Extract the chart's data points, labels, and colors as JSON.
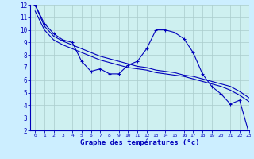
{
  "xlabel": "Graphe des températures (°c)",
  "xlim": [
    -0.5,
    23
  ],
  "ylim": [
    2,
    12
  ],
  "xticks": [
    0,
    1,
    2,
    3,
    4,
    5,
    6,
    7,
    8,
    9,
    10,
    11,
    12,
    13,
    14,
    15,
    16,
    17,
    18,
    19,
    20,
    21,
    22,
    23
  ],
  "yticks": [
    2,
    3,
    4,
    5,
    6,
    7,
    8,
    9,
    10,
    11,
    12
  ],
  "background_color": "#cceeff",
  "plot_bg_color": "#cef0f0",
  "line_color": "#0000bb",
  "grid_color": "#aacccc",
  "hours": [
    0,
    1,
    2,
    3,
    4,
    5,
    6,
    7,
    8,
    9,
    10,
    11,
    12,
    13,
    14,
    15,
    16,
    17,
    18,
    19,
    20,
    21,
    22,
    23
  ],
  "temp_main": [
    12.0,
    10.5,
    9.7,
    9.2,
    9.0,
    7.5,
    6.7,
    6.9,
    6.5,
    6.5,
    7.2,
    7.5,
    8.5,
    10.0,
    10.0,
    9.8,
    9.3,
    8.2,
    6.5,
    5.5,
    4.9,
    4.1,
    4.4,
    1.8
  ],
  "temp_line2": [
    12.0,
    10.3,
    9.5,
    9.1,
    8.8,
    8.5,
    8.2,
    7.9,
    7.7,
    7.5,
    7.3,
    7.1,
    7.0,
    6.8,
    6.7,
    6.6,
    6.4,
    6.3,
    6.1,
    5.9,
    5.7,
    5.5,
    5.1,
    4.6
  ],
  "temp_line3": [
    11.5,
    10.0,
    9.2,
    8.8,
    8.5,
    8.2,
    7.9,
    7.6,
    7.4,
    7.2,
    7.0,
    6.9,
    6.8,
    6.6,
    6.5,
    6.4,
    6.3,
    6.1,
    5.9,
    5.7,
    5.5,
    5.2,
    4.8,
    4.3
  ]
}
